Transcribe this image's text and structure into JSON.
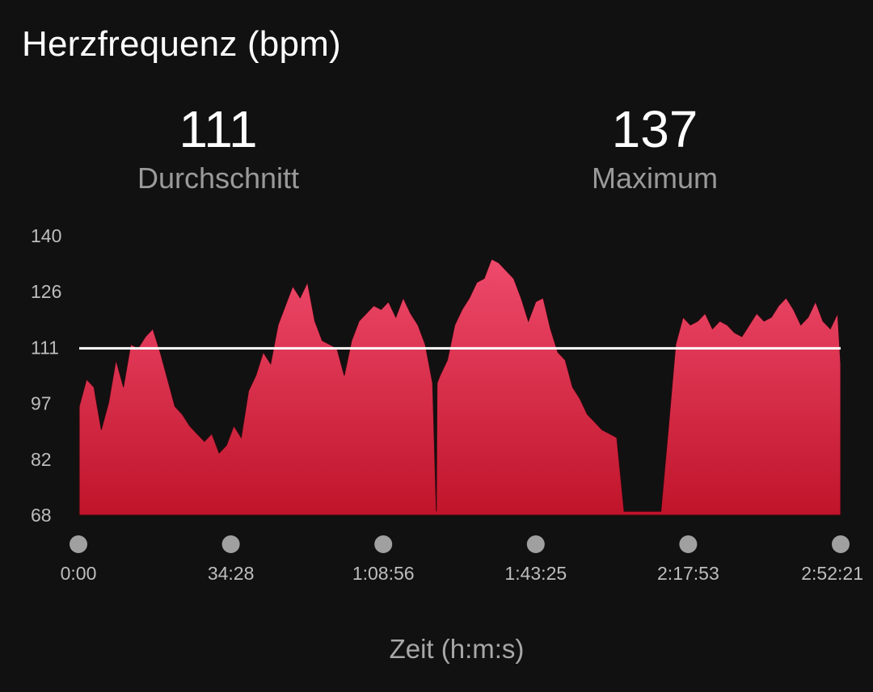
{
  "header": {
    "title": "Herzfrequenz (bpm)"
  },
  "stats": {
    "average": {
      "value": "111",
      "label": "Durchschnitt"
    },
    "maximum": {
      "value": "137",
      "label": "Maximum"
    }
  },
  "colors": {
    "background": "#111111",
    "area_top": "#ef4a6c",
    "area_bottom": "#c0142a",
    "average_line": "#ffffff",
    "marker": "#a0a0a0"
  },
  "chart_data": {
    "type": "area",
    "title": "Herzfrequenz (bpm)",
    "xlabel": "Zeit (h:m:s)",
    "ylabel": "",
    "ylim": [
      68,
      140
    ],
    "yticks": [
      "140",
      "126",
      "111",
      "97",
      "82",
      "68"
    ],
    "xticks": [
      "0:00",
      "34:28",
      "1:08:56",
      "1:43:25",
      "2:17:53",
      "2:52:21"
    ],
    "xlim_seconds": [
      0,
      10341
    ],
    "average_line": 111,
    "series": [
      {
        "x_seconds": [
          0,
          100,
          200,
          300,
          400,
          500,
          600,
          700,
          800,
          900,
          1000,
          1100,
          1200,
          1300,
          1400,
          1500,
          1600,
          1700,
          1800,
          1900,
          2000,
          2100,
          2200,
          2300,
          2400,
          2500,
          2600,
          2700,
          2800,
          2900,
          3000,
          3100,
          3200,
          3300,
          3400,
          3500,
          3600,
          3700,
          3800,
          3900,
          4000,
          4100,
          4200,
          4300,
          4400,
          4500,
          4600,
          4700,
          4800,
          4850,
          4860,
          4900,
          5000,
          5100,
          5200,
          5300,
          5400,
          5500,
          5600,
          5700,
          5800,
          5900,
          6000,
          6100,
          6200,
          6300,
          6400,
          6500,
          6600,
          6700,
          6800,
          6900,
          7000,
          7100,
          7200,
          7300,
          7400,
          7500,
          7600,
          7700,
          7800,
          7900,
          8000,
          8100,
          8200,
          8300,
          8400,
          8500,
          8600,
          8700,
          8800,
          8900,
          9000,
          9100,
          9200,
          9300,
          9400,
          9500,
          9600,
          9700,
          9800,
          9900,
          10000,
          10100,
          10200,
          10300,
          10341
        ],
        "values": [
          96,
          103,
          101,
          90,
          97,
          108,
          101,
          112,
          111,
          114,
          116,
          110,
          103,
          96,
          94,
          91,
          89,
          87,
          89,
          84,
          86,
          91,
          88,
          100,
          104,
          110,
          107,
          117,
          122,
          127,
          124,
          128,
          118,
          113,
          112,
          111,
          104,
          113,
          118,
          120,
          122,
          121,
          123,
          119,
          124,
          120,
          117,
          112,
          102,
          69,
          102,
          104,
          108,
          117,
          121,
          124,
          128,
          129,
          134,
          133,
          131,
          129,
          124,
          118,
          123,
          124,
          116,
          110,
          108,
          101,
          98,
          94,
          92,
          90,
          89,
          88,
          69,
          69,
          69,
          69,
          69,
          69,
          90,
          112,
          119,
          117,
          118,
          120,
          116,
          118,
          117,
          115,
          114,
          117,
          120,
          118,
          119,
          122,
          124,
          121,
          117,
          119,
          123,
          118,
          116,
          120,
          107
        ]
      }
    ]
  }
}
